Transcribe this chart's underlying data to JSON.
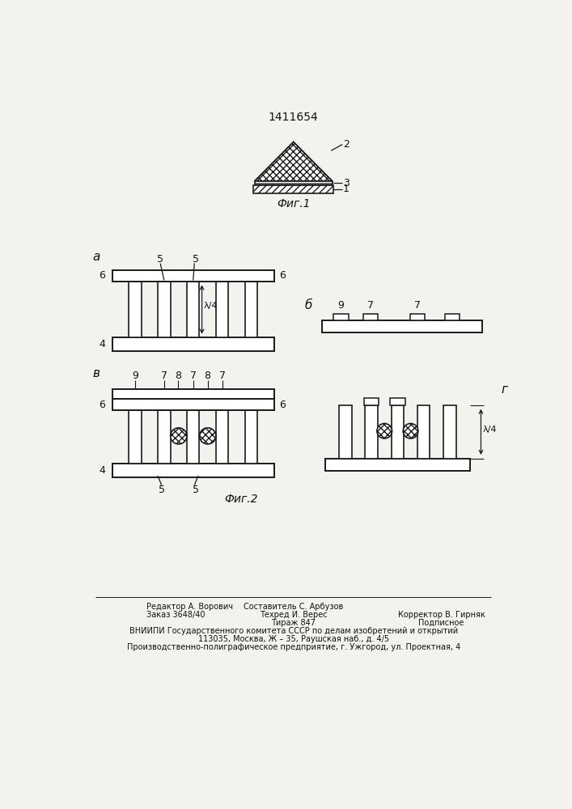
{
  "patent_number": "1411654",
  "fig1_label": "Фиг.1",
  "fig2_label": "Фиг.2",
  "bg_color": "#f2f2ee",
  "line_color": "#1a1a1a",
  "labels": {
    "a": "а",
    "b": "б",
    "v": "в",
    "g": "г",
    "num1": "1",
    "num2": "2",
    "num3": "3",
    "num4": "4",
    "num5": "5",
    "num6": "6",
    "num7": "7",
    "num8": "8",
    "num9": "9"
  },
  "footer": {
    "line1_left": "Редактор А. Ворович",
    "line1_center": "Составитель С. Арбузов",
    "line2_left": "Заказ 3648/40",
    "line2_center": "Техред И. Верес",
    "line2_right": "Корректор В. Гирняк",
    "line3_center": "Тираж 847",
    "line3_right": "Подписное",
    "line4": "ВНИИПИ Государственного комитета СССР по делам изобретений и открытий",
    "line5": "113035, Москва, Ж – 35, Раушская наб., д. 4/5",
    "line6": "Производственно-полиграфическое предприятие, г. Ужгород, ул. Проектная, 4"
  }
}
